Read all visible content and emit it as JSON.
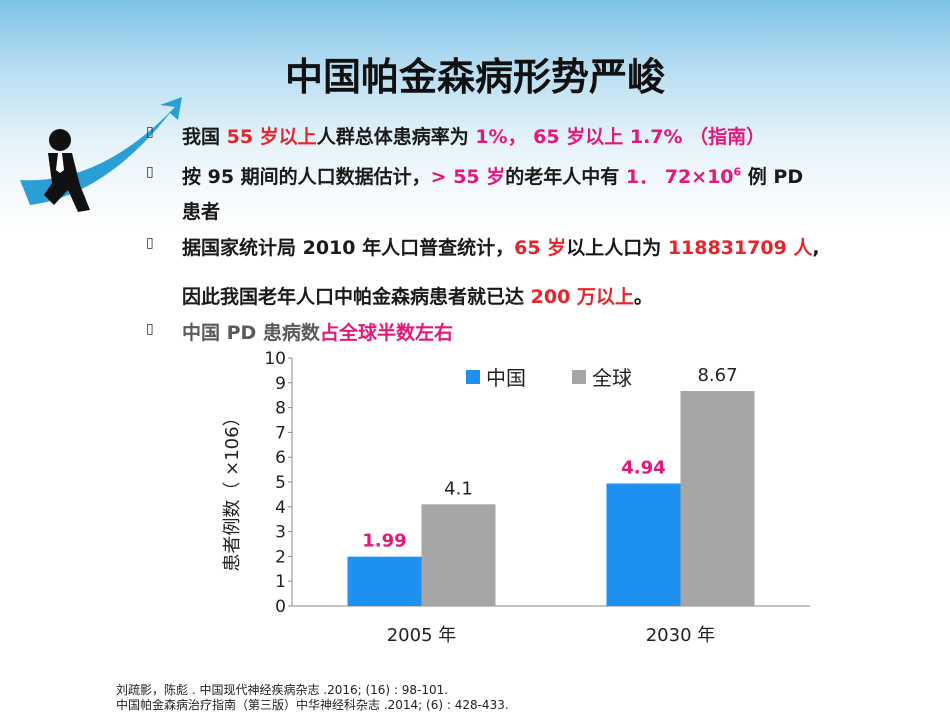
{
  "title": "中国帕金森病形势严峻",
  "bullets": [
    {
      "parts": [
        "我国 ",
        "55 岁以上",
        "人群总体患病率为 ",
        "1%， 65 岁以上 1.7% （指南）"
      ]
    },
    {
      "parts": [
        "按 95 期间的人口数据估计，",
        "> 55 岁",
        "的老年人中有 ",
        "1． 72×10",
        "6",
        " 例 PD"
      ],
      "cont": "患者"
    },
    {
      "parts": [
        "据国家统计局 2010 年人口普查统计，",
        "65 岁",
        "以上人口为 ",
        "118831709 人",
        ","
      ],
      "cont_parts": [
        "因此我国老年人口中帕金森病患者就已达 ",
        "200 万以上",
        "。"
      ]
    },
    {
      "parts": [
        "中国 PD 患病数",
        "占全球半数左右"
      ]
    }
  ],
  "colors": {
    "red": "#e8242a",
    "pink": "#e6177a",
    "china": "#1e90f0",
    "global": "#a6a6a6"
  },
  "chart_data": {
    "type": "bar",
    "categories": [
      "2005 年",
      "2030 年"
    ],
    "series": [
      {
        "name": "中国",
        "values": [
          1.99,
          4.94
        ]
      },
      {
        "name": "全球",
        "values": [
          4.1,
          8.67
        ]
      }
    ],
    "ylabel": "患者例数（ ×106）",
    "ylim": [
      0,
      10
    ],
    "yticks": [
      "0",
      "1",
      "2",
      "3",
      "4",
      "5",
      "6",
      "7",
      "8",
      "9",
      "10"
    ],
    "data_labels": [
      [
        "1.99",
        "4.94"
      ],
      [
        "4.1",
        "8.67"
      ]
    ],
    "legend": "top"
  },
  "references": [
    "刘疏影，陈彪 . 中国现代神经疾病杂志 .2016; (16) : 98-101.",
    "中国帕金森病治疗指南（第三版）中华神经科杂志 .2014; (6) : 428-433."
  ]
}
